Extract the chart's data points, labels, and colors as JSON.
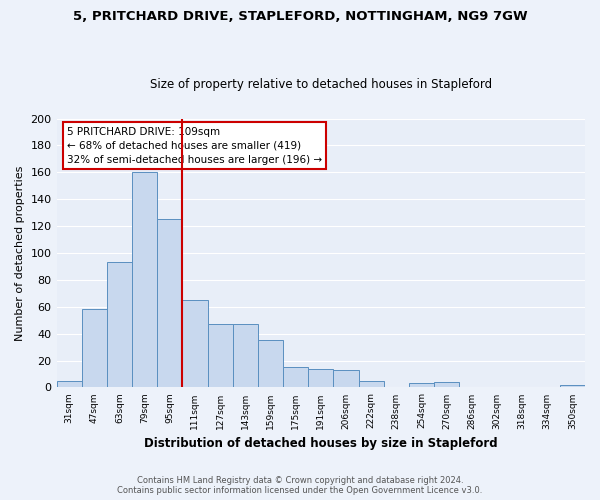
{
  "title": "5, PRITCHARD DRIVE, STAPLEFORD, NOTTINGHAM, NG9 7GW",
  "subtitle": "Size of property relative to detached houses in Stapleford",
  "xlabel": "Distribution of detached houses by size in Stapleford",
  "ylabel": "Number of detached properties",
  "bar_color": "#c8d8ee",
  "bar_edge_color": "#5a8fc0",
  "background_color": "#e8eef8",
  "grid_color": "#ffffff",
  "fig_bg_color": "#edf2fa",
  "categories": [
    "31sqm",
    "47sqm",
    "63sqm",
    "79sqm",
    "95sqm",
    "111sqm",
    "127sqm",
    "143sqm",
    "159sqm",
    "175sqm",
    "191sqm",
    "206sqm",
    "222sqm",
    "238sqm",
    "254sqm",
    "270sqm",
    "286sqm",
    "302sqm",
    "318sqm",
    "334sqm",
    "350sqm"
  ],
  "values": [
    5,
    58,
    93,
    160,
    125,
    65,
    47,
    47,
    35,
    15,
    14,
    13,
    5,
    0,
    3,
    4,
    0,
    0,
    0,
    0,
    2
  ],
  "ylim": [
    0,
    200
  ],
  "yticks": [
    0,
    20,
    40,
    60,
    80,
    100,
    120,
    140,
    160,
    180,
    200
  ],
  "red_line_x": 4.5,
  "annotation_text": "5 PRITCHARD DRIVE: 109sqm\n← 68% of detached houses are smaller (419)\n32% of semi-detached houses are larger (196) →",
  "annotation_box_color": "#ffffff",
  "annotation_box_edge": "#cc0000",
  "footer_line1": "Contains HM Land Registry data © Crown copyright and database right 2024.",
  "footer_line2": "Contains public sector information licensed under the Open Government Licence v3.0."
}
